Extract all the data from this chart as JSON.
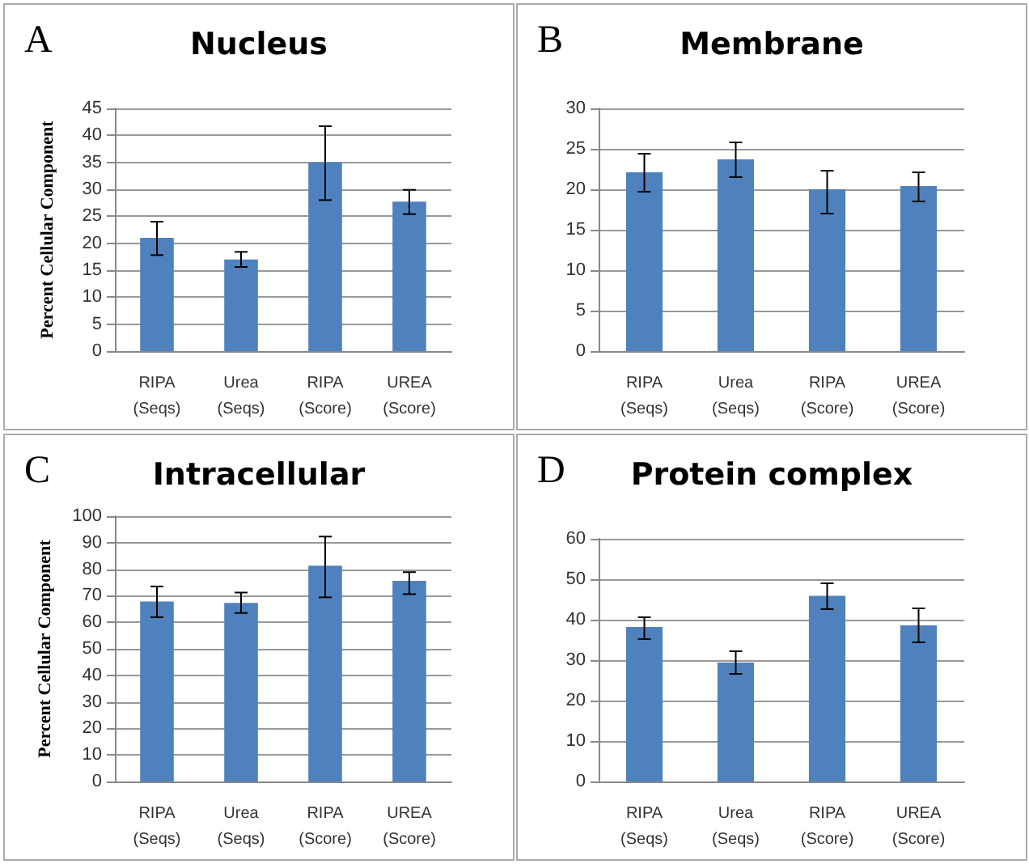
{
  "chart_data": [
    {
      "type": "bar",
      "title": "Nucleus",
      "ylabel": "Percent Cellular Component",
      "annotations": [
        "A"
      ],
      "categories": [
        "RIPA (Seqs)",
        "Urea (Seqs)",
        "RIPA (Score)",
        "UREA (Score)"
      ],
      "values": [
        21,
        17,
        35,
        27.7
      ],
      "errors": [
        [
          17.8,
          24
        ],
        [
          15.6,
          18.4
        ],
        [
          28,
          41.7
        ],
        [
          25.4,
          29.9
        ]
      ],
      "color": "#4f81bd",
      "ylim": [
        0,
        45
      ],
      "yticks": [
        0,
        5,
        10,
        15,
        20,
        25,
        30,
        35,
        40,
        45
      ],
      "grid": "y"
    },
    {
      "type": "bar",
      "title": "Membrane",
      "annotations": [
        "B"
      ],
      "categories": [
        "RIPA (Seqs)",
        "Urea (Seqs)",
        "RIPA (Score)",
        "UREA (Score)"
      ],
      "values": [
        22.1,
        23.7,
        20,
        20.4
      ],
      "errors": [
        [
          19.7,
          24.4
        ],
        [
          21.5,
          25.8
        ],
        [
          17,
          22.3
        ],
        [
          18.5,
          22.1
        ]
      ],
      "color": "#4f81bd",
      "ylim": [
        0,
        30
      ],
      "yticks": [
        0,
        5,
        10,
        15,
        20,
        25,
        30
      ],
      "grid": "y"
    },
    {
      "type": "bar",
      "title": "Intracellular",
      "ylabel": "Percent Cellular Component",
      "annotations": [
        "C"
      ],
      "categories": [
        "RIPA (Seqs)",
        "Urea (Seqs)",
        "RIPA (Score)",
        "UREA (Score)"
      ],
      "values": [
        67.8,
        67.3,
        81.3,
        75.6
      ],
      "errors": [
        [
          61.9,
          73.5
        ],
        [
          63.5,
          71.2
        ],
        [
          69.4,
          92.3
        ],
        [
          70.6,
          78.9
        ]
      ],
      "color": "#4f81bd",
      "ylim": [
        0,
        100
      ],
      "yticks": [
        0,
        10,
        20,
        30,
        40,
        50,
        60,
        70,
        80,
        90,
        100
      ],
      "grid": "y"
    },
    {
      "type": "bar",
      "title": "Protein complex",
      "annotations": [
        "D"
      ],
      "categories": [
        "RIPA (Seqs)",
        "Urea (Seqs)",
        "RIPA (Score)",
        "UREA (Score)"
      ],
      "values": [
        38.2,
        29.4,
        45.9,
        38.6
      ],
      "errors": [
        [
          35.2,
          40.6
        ],
        [
          26.6,
          32.2
        ],
        [
          42.6,
          49
        ],
        [
          34.4,
          42.8
        ]
      ],
      "color": "#4f81bd",
      "ylim": [
        0,
        60
      ],
      "yticks": [
        0,
        10,
        20,
        30,
        40,
        50,
        60
      ],
      "grid": "y"
    }
  ]
}
